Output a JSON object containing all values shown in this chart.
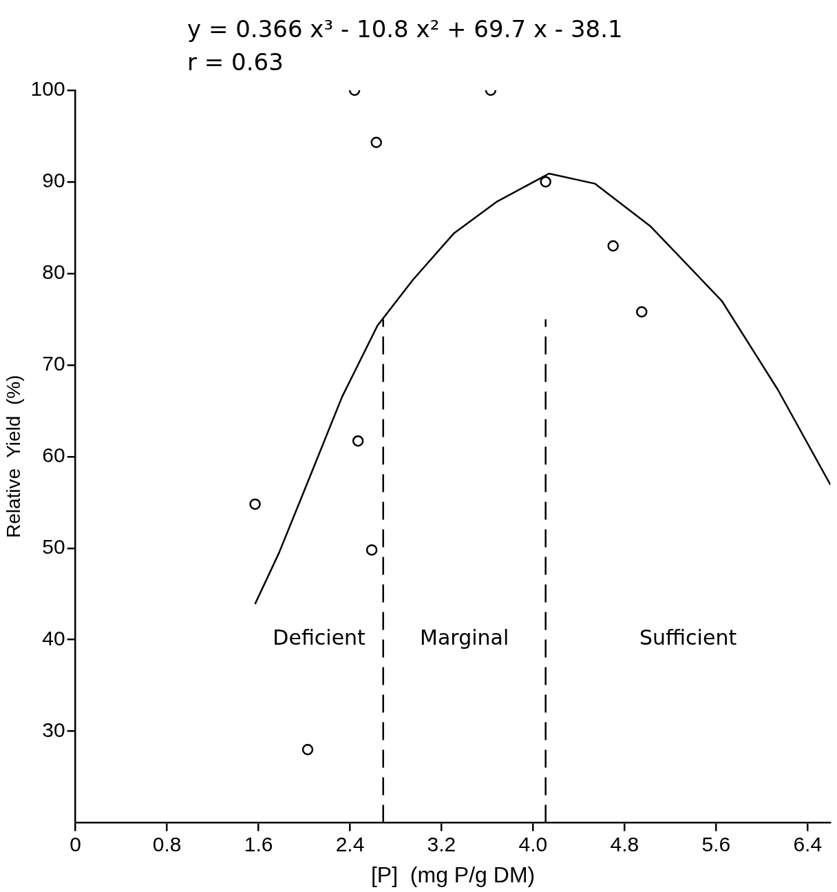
{
  "chart_data": {
    "type": "scatter",
    "xlabel": "[P]  (mg P/g DM)",
    "ylabel": "Relative  Yield  (%)",
    "xlim": [
      0,
      6.6
    ],
    "ylim": [
      20,
      100
    ],
    "xticks": [
      0,
      0.8,
      1.6,
      2.4,
      3.2,
      {
        "value": 4,
        "label": "4.0"
      },
      4.8,
      5.6,
      6.4
    ],
    "yticks": [
      30,
      40,
      50,
      60,
      70,
      80,
      90,
      100
    ],
    "grid": false,
    "legend": false,
    "marker": "circle",
    "series": [
      {
        "type": "scatter",
        "color": "#000000",
        "x": [
          1.57,
          2.03,
          2.44,
          2.47,
          2.59,
          2.63,
          3.63,
          4.11,
          4.7,
          4.95
        ],
        "values": [
          54.8,
          28,
          100,
          61.7,
          49.8,
          94.3,
          100,
          90,
          83,
          75.8
        ]
      },
      {
        "type": "line",
        "color": "#000000",
        "marker": "none",
        "line_style": "solid",
        "x": [
          1.57,
          1.78,
          2.03,
          2.33,
          2.64,
          2.95,
          3.31,
          3.68,
          4.14,
          4.54,
          5.03,
          5.65,
          6.14,
          6.6
        ],
        "values": [
          43.9,
          49.5,
          57.2,
          66.5,
          74.3,
          79.3,
          84.4,
          87.8,
          90.9,
          89.8,
          85.1,
          77,
          67.3,
          56.9
        ]
      }
    ],
    "ref_lines": [
      {
        "axis": "x",
        "value": 2.69,
        "color": "#000000",
        "line_style": "dashed"
      },
      {
        "axis": "x",
        "value": 4.11,
        "color": "#000000",
        "line_style": "dashed"
      }
    ],
    "annotations": [
      "y = 0.366 x³ - 10.8 x² + 69.7 x - 38.1",
      "r = 0.63",
      "Deficient",
      "Marginal",
      "Sufficient"
    ]
  }
}
